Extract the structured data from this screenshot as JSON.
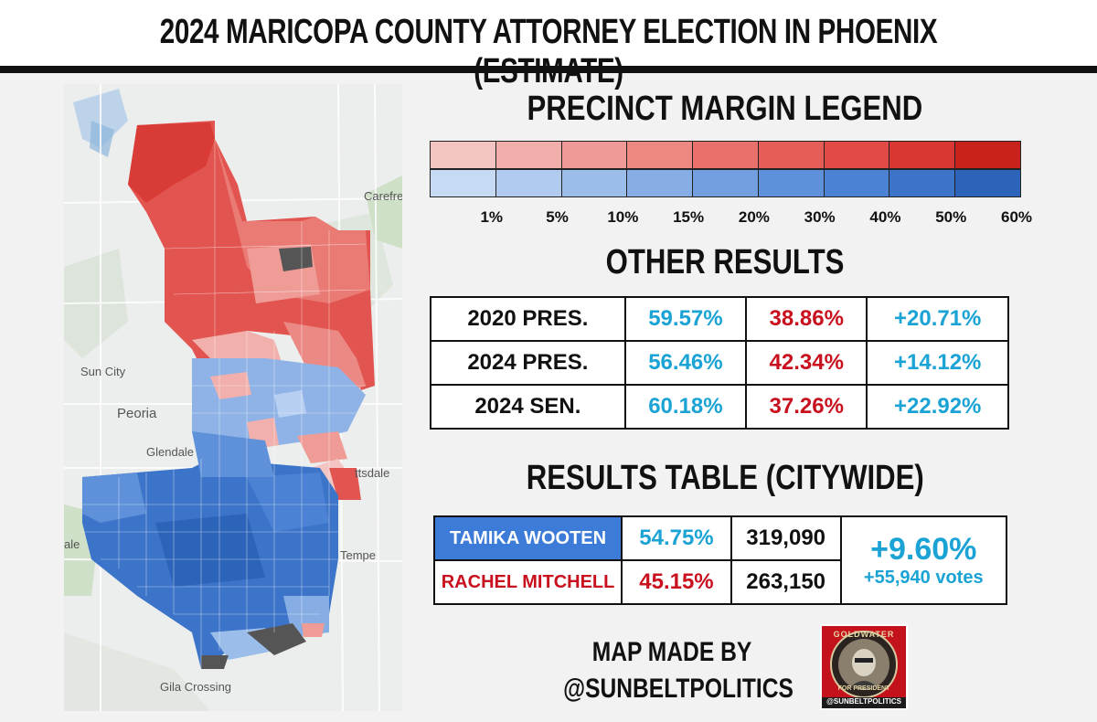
{
  "title": "2024 MARICOPA COUNTY ATTORNEY ELECTION IN PHOENIX (ESTIMATE)",
  "map": {
    "places": [
      "Carefree",
      "Sun City",
      "Peoria",
      "Glendale",
      "ttsdale",
      "ale",
      "Tempe",
      "Gila Crossing"
    ]
  },
  "legend": {
    "heading": "PRECINCT MARGIN LEGEND",
    "ticks": [
      "1%",
      "5%",
      "10%",
      "15%",
      "20%",
      "30%",
      "40%",
      "50%",
      "60%"
    ],
    "red_colors": [
      "#f4c4c2",
      "#f2aeab",
      "#ef9a96",
      "#ec8782",
      "#e9716c",
      "#e65c57",
      "#e14a45",
      "#d93732",
      "#c9211c"
    ],
    "blue_colors": [
      "#c6daf4",
      "#b0cbef",
      "#9bbdea",
      "#86aee4",
      "#719fdf",
      "#5e91d9",
      "#4b82d3",
      "#3b74c9",
      "#2b64b8"
    ]
  },
  "other_results": {
    "heading": "OTHER RESULTS",
    "rows": [
      {
        "race": "2020 PRES.",
        "dem": "59.57%",
        "rep": "38.86%",
        "margin": "+20.71%"
      },
      {
        "race": "2024 PRES.",
        "dem": "56.46%",
        "rep": "42.34%",
        "margin": "+14.12%"
      },
      {
        "race": "2024 SEN.",
        "dem": "60.18%",
        "rep": "37.26%",
        "margin": "+22.92%"
      }
    ]
  },
  "results_table": {
    "heading": "RESULTS TABLE (CITYWIDE)",
    "candidates": [
      {
        "name": "TAMIKA WOOTEN",
        "pct": "54.75%",
        "votes": "319,090"
      },
      {
        "name": "RACHEL MITCHELL",
        "pct": "45.15%",
        "votes": "263,150"
      }
    ],
    "margin": "+9.60%",
    "margin_votes": "+55,940 votes"
  },
  "credit": {
    "line1": "MAP MADE BY",
    "line2": "@SUNBELTPOLITICS"
  },
  "logo": {
    "top_text": "GOLDWATER",
    "bottom_text": "FOR PRESIDENT",
    "handle": "@SUNBELTPOLITICS"
  }
}
